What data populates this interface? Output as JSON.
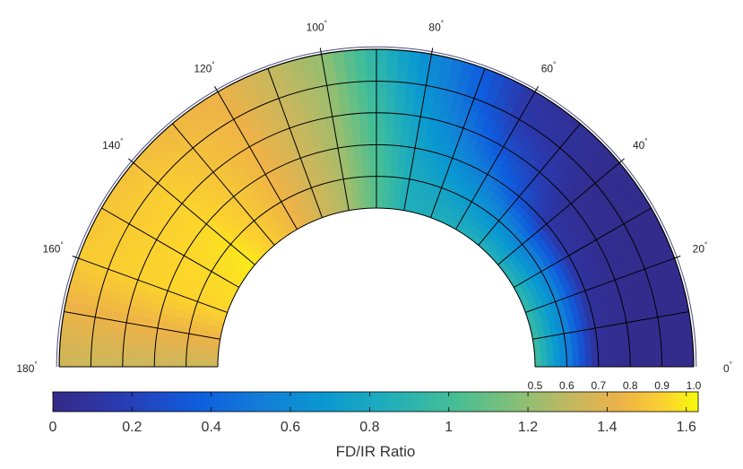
{
  "chart_data": {
    "type": "heatmap",
    "subtype": "polar-half-annulus",
    "theta_range_deg": [
      0,
      180
    ],
    "r_range": [
      0.5,
      1.0
    ],
    "angle_ticks": [
      "0",
      "20",
      "40",
      "60",
      "80",
      "100",
      "120",
      "140",
      "160",
      "180"
    ],
    "angle_tick_values": [
      0,
      20,
      40,
      60,
      80,
      100,
      120,
      140,
      160,
      180
    ],
    "radial_ticks": [
      "0.5",
      "0.6",
      "0.7",
      "0.8",
      "0.9",
      "1.0"
    ],
    "radial_tick_values": [
      0.5,
      0.6,
      0.7,
      0.8,
      0.9,
      1.0
    ],
    "colorbar": {
      "label": "FD/IR Ratio",
      "ticks": [
        "0",
        "0.2",
        "0.4",
        "0.6",
        "0.8",
        "1",
        "1.2",
        "1.4",
        "1.6"
      ],
      "tick_values": [
        0,
        0.2,
        0.4,
        0.6,
        0.8,
        1.0,
        1.2,
        1.4,
        1.6
      ],
      "range": [
        0,
        1.63
      ],
      "colormap": "parula"
    },
    "field_samples": [
      {
        "theta": 0,
        "r_0.5": 1.0,
        "r_0.6": 0.55,
        "r_0.7": 0.05,
        "r_0.8": 0.02,
        "r_0.9": 0.02,
        "r_1.0": 0.02
      },
      {
        "theta": 20,
        "r_0.5": 0.95,
        "r_0.6": 0.6,
        "r_0.7": 0.08,
        "r_0.8": 0.03,
        "r_0.9": 0.02,
        "r_1.0": 0.02
      },
      {
        "theta": 40,
        "r_0.5": 0.88,
        "r_0.6": 0.55,
        "r_0.7": 0.12,
        "r_0.8": 0.05,
        "r_0.9": 0.03,
        "r_1.0": 0.03
      },
      {
        "theta": 60,
        "r_0.5": 0.85,
        "r_0.6": 0.7,
        "r_0.7": 0.5,
        "r_0.8": 0.3,
        "r_0.9": 0.15,
        "r_1.0": 0.1
      },
      {
        "theta": 80,
        "r_0.5": 0.85,
        "r_0.6": 0.83,
        "r_0.7": 0.78,
        "r_0.8": 0.72,
        "r_0.9": 0.65,
        "r_1.0": 0.6
      },
      {
        "theta": 100,
        "r_0.5": 1.25,
        "r_0.6": 1.25,
        "r_0.7": 1.24,
        "r_0.8": 1.23,
        "r_0.9": 1.22,
        "r_1.0": 1.2
      },
      {
        "theta": 120,
        "r_0.5": 1.45,
        "r_0.6": 1.45,
        "r_0.7": 1.45,
        "r_0.8": 1.45,
        "r_0.9": 1.44,
        "r_1.0": 1.43
      },
      {
        "theta": 140,
        "r_0.5": 1.6,
        "r_0.6": 1.58,
        "r_0.7": 1.56,
        "r_0.8": 1.54,
        "r_0.9": 1.52,
        "r_1.0": 1.48
      },
      {
        "theta": 160,
        "r_0.5": 1.55,
        "r_0.6": 1.55,
        "r_0.7": 1.55,
        "r_0.8": 1.54,
        "r_0.9": 1.53,
        "r_1.0": 1.52
      },
      {
        "theta": 180,
        "r_0.5": 1.33,
        "r_0.6": 1.33,
        "r_0.7": 1.33,
        "r_0.8": 1.33,
        "r_0.9": 1.33,
        "r_1.0": 1.33
      }
    ],
    "grid": true,
    "legend": "none"
  }
}
